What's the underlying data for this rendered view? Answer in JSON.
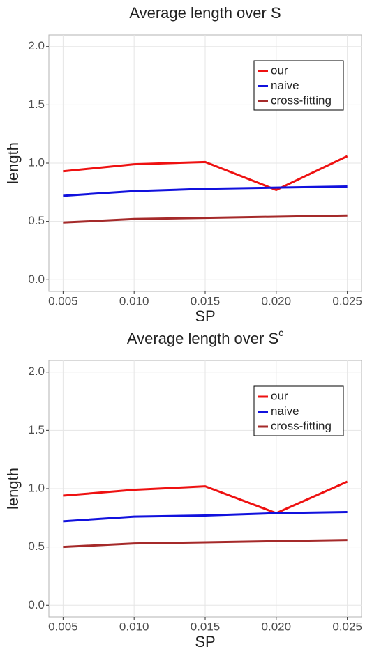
{
  "chart_data": [
    {
      "type": "line",
      "title": "Average length over S",
      "x_label": "SP",
      "y_label": "length",
      "x": [
        0.005,
        0.01,
        0.015,
        0.02,
        0.025
      ],
      "series": [
        {
          "name": "our",
          "color": "#ee1111",
          "values": [
            0.93,
            0.99,
            1.01,
            0.77,
            1.06
          ]
        },
        {
          "name": "naive",
          "color": "#1111dd",
          "values": [
            0.72,
            0.76,
            0.78,
            0.79,
            0.8
          ]
        },
        {
          "name": "cross-fitting",
          "color": "#a52a2a",
          "values": [
            0.49,
            0.52,
            0.53,
            0.54,
            0.55
          ]
        }
      ],
      "xlim": [
        0.004,
        0.026
      ],
      "xticks": [
        0.005,
        {
          "value": 0.01,
          "label": "0.010"
        },
        0.015,
        {
          "value": 0.02,
          "label": "0.020"
        },
        0.025
      ],
      "ylim": [
        -0.1,
        2.1
      ],
      "yticks": [
        {
          "value": 0,
          "label": "0.0"
        },
        0.5,
        {
          "value": 1,
          "label": "1.0"
        },
        1.5,
        {
          "value": 2,
          "label": "2.0"
        }
      ],
      "grid": true,
      "legend": "top-right"
    },
    {
      "type": "line",
      "title": "Average length over S",
      "title_superscript": "c",
      "x_label": "SP",
      "y_label": "length",
      "x": [
        0.005,
        0.01,
        0.015,
        0.02,
        0.025
      ],
      "series": [
        {
          "name": "our",
          "color": "#ee1111",
          "values": [
            0.94,
            0.99,
            1.02,
            0.79,
            1.06
          ]
        },
        {
          "name": "naive",
          "color": "#1111dd",
          "values": [
            0.72,
            0.76,
            0.77,
            0.79,
            0.8
          ]
        },
        {
          "name": "cross-fitting",
          "color": "#a52a2a",
          "values": [
            0.5,
            0.53,
            0.54,
            0.55,
            0.56
          ]
        }
      ],
      "xlim": [
        0.004,
        0.026
      ],
      "xticks": [
        0.005,
        {
          "value": 0.01,
          "label": "0.010"
        },
        0.015,
        {
          "value": 0.02,
          "label": "0.020"
        },
        0.025
      ],
      "ylim": [
        -0.1,
        2.1
      ],
      "yticks": [
        {
          "value": 0,
          "label": "0.0"
        },
        0.5,
        {
          "value": 1,
          "label": "1.0"
        },
        1.5,
        {
          "value": 2,
          "label": "2.0"
        }
      ],
      "grid": true,
      "legend": "top-right"
    }
  ]
}
